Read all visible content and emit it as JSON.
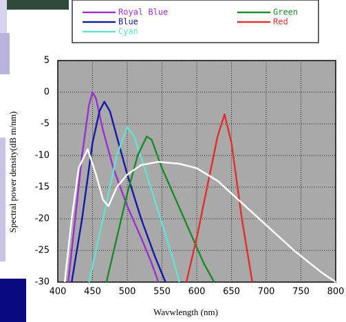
{
  "chart_data": {
    "type": "line",
    "x_label": "Wavwlength (nm)",
    "y_label": "Spectral power density(dB m/nm)",
    "xlim": [
      400,
      800
    ],
    "xticks": [
      400,
      450,
      500,
      550,
      600,
      650,
      700,
      750,
      800
    ],
    "ylim": [
      -30,
      5
    ],
    "yticks": [
      5,
      0,
      -5,
      -10,
      -15,
      -20,
      -25,
      -30
    ],
    "grid": true,
    "series": [
      {
        "name": "Royal Blue",
        "color": "#9933cc",
        "x": [
          415,
          425,
          435,
          445,
          450,
          455,
          465,
          480,
          500,
          520,
          535,
          545
        ],
        "values": [
          -30,
          -20,
          -10,
          -2,
          0,
          -1,
          -6,
          -12,
          -18,
          -23,
          -27,
          -30
        ]
      },
      {
        "name": "Blue",
        "color": "#1a1aa8",
        "x": [
          420,
          435,
          450,
          460,
          467,
          475,
          485,
          500,
          520,
          540,
          555
        ],
        "values": [
          -30,
          -20,
          -8,
          -3,
          -1.5,
          -3,
          -7,
          -13,
          -20,
          -26,
          -30
        ]
      },
      {
        "name": "Cyan",
        "color": "#66e0d0",
        "x": [
          445,
          465,
          485,
          500,
          510,
          525,
          545,
          565,
          575
        ],
        "values": [
          -30,
          -20,
          -10,
          -5.5,
          -7,
          -12,
          -19,
          -26,
          -30
        ]
      },
      {
        "name": "Green",
        "color": "#1e8a2e",
        "x": [
          470,
          485,
          500,
          515,
          528,
          535,
          550,
          570,
          590,
          610,
          625
        ],
        "values": [
          -30,
          -23,
          -16,
          -10,
          -7,
          -7.5,
          -12,
          -17,
          -22,
          -27,
          -30
        ]
      },
      {
        "name": "Red",
        "color": "#e03030",
        "x": [
          585,
          600,
          615,
          630,
          640,
          650,
          665,
          680
        ],
        "values": [
          -30,
          -23,
          -15,
          -7,
          -3.5,
          -8,
          -20,
          -30
        ]
      },
      {
        "color": "#ffffff",
        "x": [
          410,
          420,
          430,
          443,
          455,
          465,
          473,
          485,
          500,
          520,
          545,
          575,
          600,
          630,
          660,
          700,
          740,
          780,
          800
        ],
        "values": [
          -30,
          -20,
          -12,
          -9,
          -13,
          -17,
          -18,
          -15,
          -13,
          -11.5,
          -11,
          -11.3,
          -12,
          -14,
          -17,
          -21,
          -25,
          -28.5,
          -30
        ]
      }
    ]
  }
}
